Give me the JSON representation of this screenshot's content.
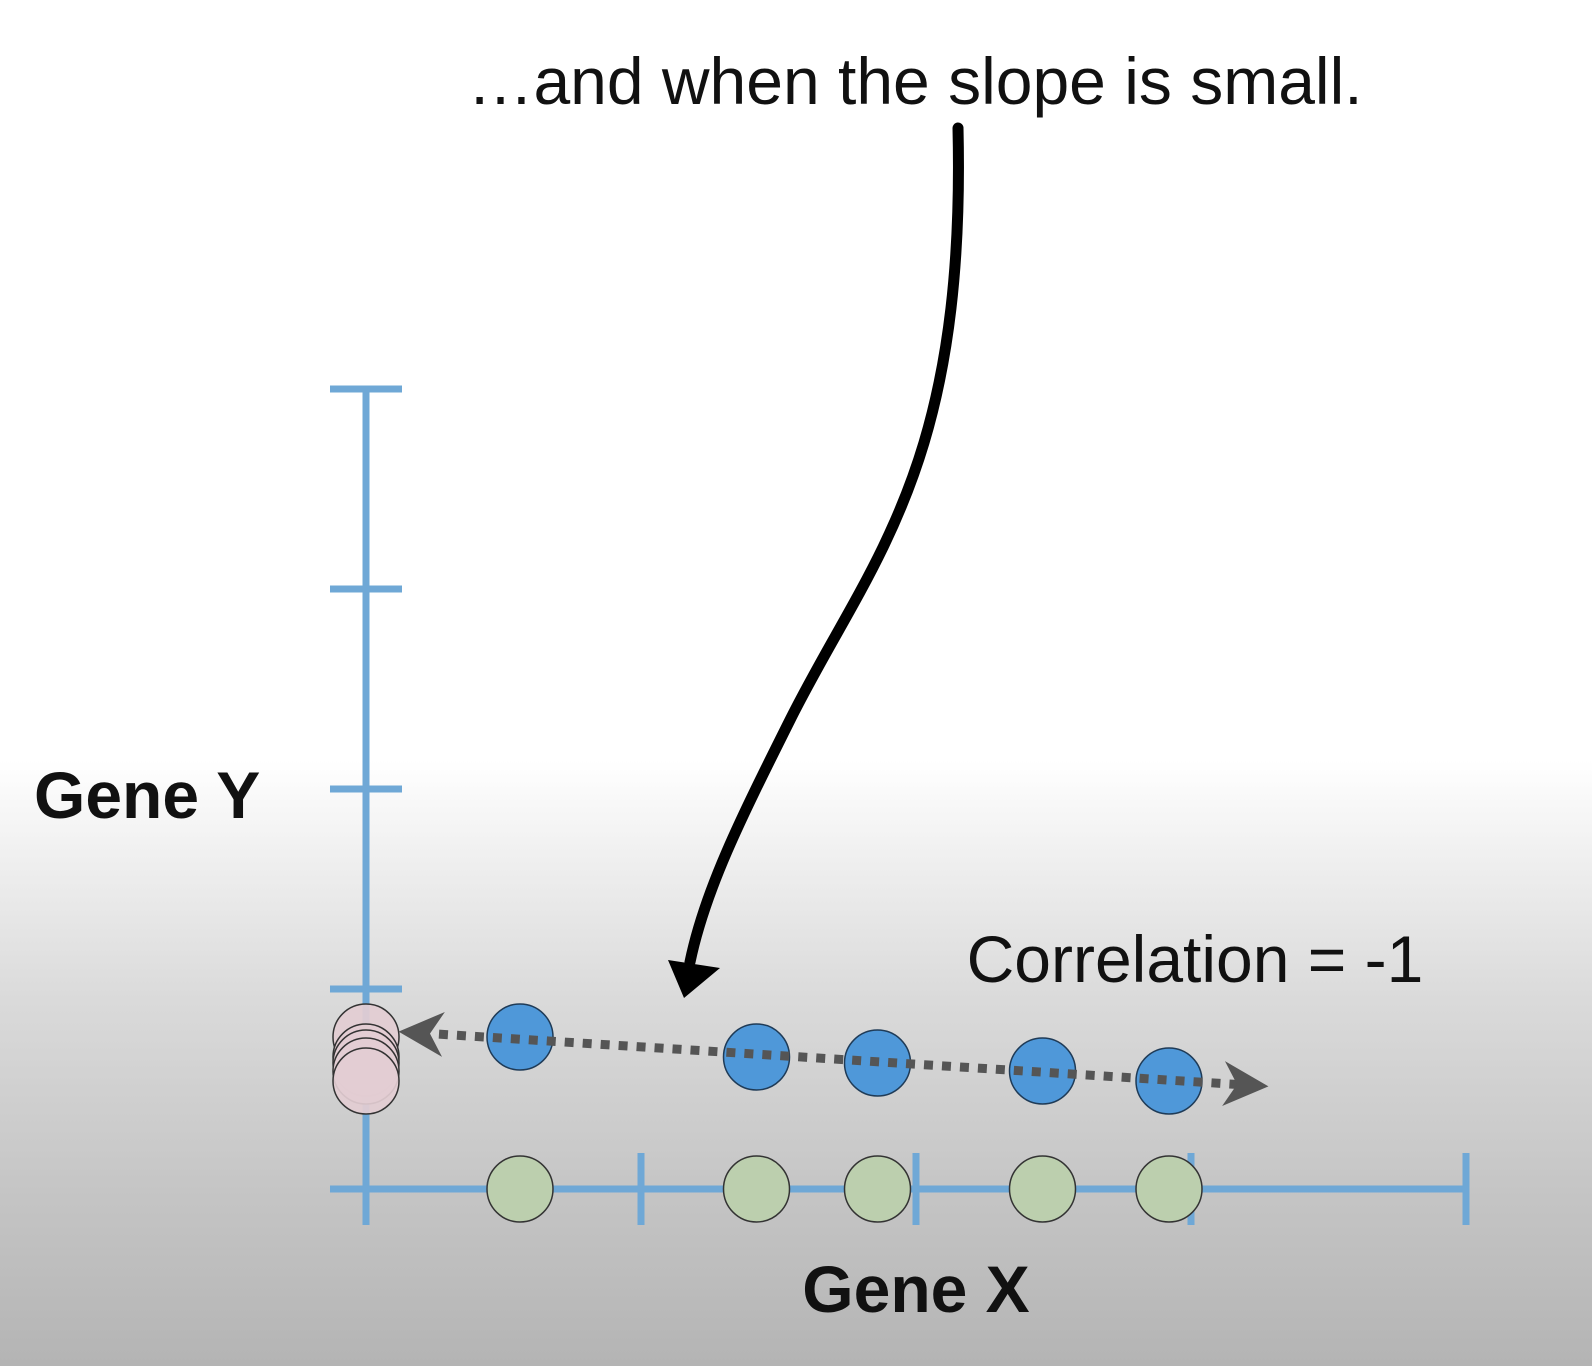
{
  "chart_data": {
    "type": "scatter",
    "title": "…and when the slope is small.",
    "xlabel": "Gene X",
    "ylabel": "Gene Y",
    "annotation": "Correlation = -1",
    "xlim": [
      0,
      4
    ],
    "ylim": [
      0,
      4
    ],
    "x_ticks": [
      0,
      1,
      2,
      3,
      4
    ],
    "y_ticks": [
      0,
      1,
      2,
      3,
      4
    ],
    "grid": false,
    "points": [
      {
        "x": 0.56,
        "y": 0.76
      },
      {
        "x": 1.42,
        "y": 0.66
      },
      {
        "x": 1.86,
        "y": 0.63
      },
      {
        "x": 2.46,
        "y": 0.59
      },
      {
        "x": 2.92,
        "y": 0.54
      }
    ],
    "trend_line": {
      "x": [
        0.2,
        3.2
      ],
      "y": [
        0.78,
        0.52
      ],
      "style": "dotted",
      "arrows": "both"
    },
    "x_projections": [
      0.56,
      1.42,
      1.86,
      2.46,
      2.92
    ],
    "y_projections": [
      0.76,
      0.66,
      0.63,
      0.59,
      0.54
    ],
    "colors": {
      "axis": "#6fa8d6",
      "point_fill": "#4f98d9",
      "point_stroke": "#1f3b57",
      "x_projection_fill": "#bccfae",
      "y_projection_fill": "#e3cdd3",
      "trend_line": "#555555",
      "arrow": "#000000"
    }
  }
}
